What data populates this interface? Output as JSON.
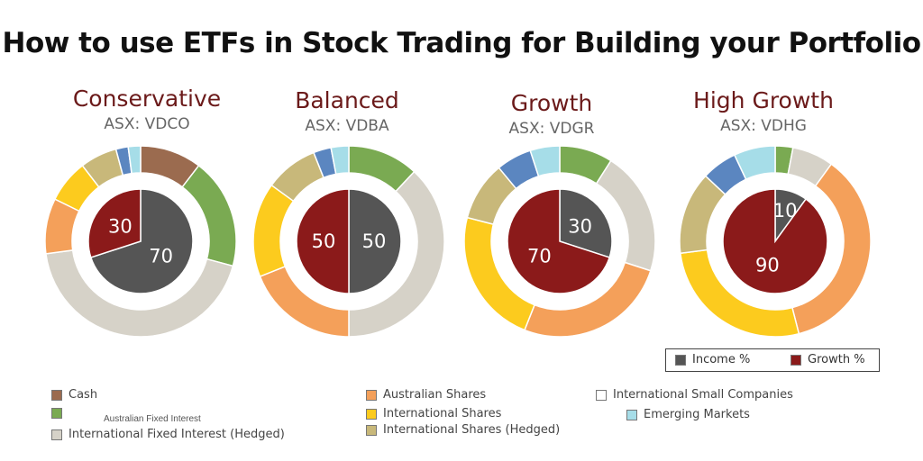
{
  "title": "How to use ETFs in Stock Trading for Building your Portfolio",
  "colors": {
    "Cash": "#9b6b4f",
    "Australian Fixed Interest": "#7aaa52",
    "International Fixed Interest (Hedged)": "#d6d2c8",
    "Australian Shares": "#f4a05a",
    "International Shares": "#fccb1e",
    "International Shares (Hedged)": "#c8b87a",
    "International Small Companies": "#ffffff",
    "Emerging Markets": "#a6dde8",
    "International Small Companies (ring)": "#5b86c0",
    "Income %": "#555555",
    "Growth %": "#8b1a1a"
  },
  "chart_data": [
    {
      "type": "pie",
      "title": "Conservative",
      "subtitle": "ASX: VDCO",
      "inner": {
        "categories": [
          "Income %",
          "Growth %"
        ],
        "values": [
          70,
          30
        ]
      },
      "outer": {
        "categories": [
          "Cash",
          "Australian Fixed Interest",
          "International Fixed Interest (Hedged)",
          "Australian Shares",
          "International Shares",
          "International Shares (Hedged)",
          "International Small Companies",
          "Emerging Markets"
        ],
        "values": [
          10,
          18,
          42,
          9,
          7,
          6,
          2,
          2
        ]
      }
    },
    {
      "type": "pie",
      "title": "Balanced",
      "subtitle": "ASX: VDBA",
      "inner": {
        "categories": [
          "Income %",
          "Growth %"
        ],
        "values": [
          50,
          50
        ]
      },
      "outer": {
        "categories": [
          "Australian Fixed Interest",
          "International Fixed Interest (Hedged)",
          "Australian Shares",
          "International Shares",
          "International Shares (Hedged)",
          "International Small Companies",
          "Emerging Markets"
        ],
        "values": [
          12,
          38,
          19,
          16,
          9,
          3,
          3
        ]
      }
    },
    {
      "type": "pie",
      "title": "Growth",
      "subtitle": "ASX: VDGR",
      "inner": {
        "categories": [
          "Income %",
          "Growth %"
        ],
        "values": [
          30,
          70
        ]
      },
      "outer": {
        "categories": [
          "Australian Fixed Interest",
          "International Fixed Interest (Hedged)",
          "Australian Shares",
          "International Shares",
          "International Shares (Hedged)",
          "International Small Companies",
          "Emerging Markets"
        ],
        "values": [
          9,
          21,
          26,
          23,
          10,
          6,
          5
        ]
      }
    },
    {
      "type": "pie",
      "title": "High Growth",
      "subtitle": "ASX: VDHG",
      "inner": {
        "categories": [
          "Income %",
          "Growth %"
        ],
        "values": [
          10,
          90
        ]
      },
      "outer": {
        "categories": [
          "Australian Fixed Interest",
          "International Fixed Interest (Hedged)",
          "Australian Shares",
          "International Shares",
          "International Shares (Hedged)",
          "International Small Companies",
          "Emerging Markets"
        ],
        "values": [
          3,
          7,
          36,
          27,
          14,
          6,
          7
        ]
      }
    }
  ],
  "inner_legend": [
    {
      "label": "Income %",
      "color": "#555555"
    },
    {
      "label": "Growth %",
      "color": "#8b1a1a"
    }
  ],
  "legend": [
    {
      "label": "Cash",
      "color": "#9b6b4f"
    },
    {
      "label": "",
      "color": "#7aaa52"
    },
    {
      "label": "International Fixed Interest (Hedged)",
      "color": "#d6d2c8"
    },
    {
      "label": "Australian Shares",
      "color": "#f4a05a"
    },
    {
      "label": "International Shares",
      "color": "#fccb1e"
    },
    {
      "label": "International Shares (Hedged)",
      "color": "#c8b87a"
    },
    {
      "label": "International Small Companies",
      "color": "#ffffff"
    },
    {
      "label": "Emerging Markets",
      "color": "#a6dde8"
    }
  ],
  "floating_label": "Australian Fixed Interest"
}
